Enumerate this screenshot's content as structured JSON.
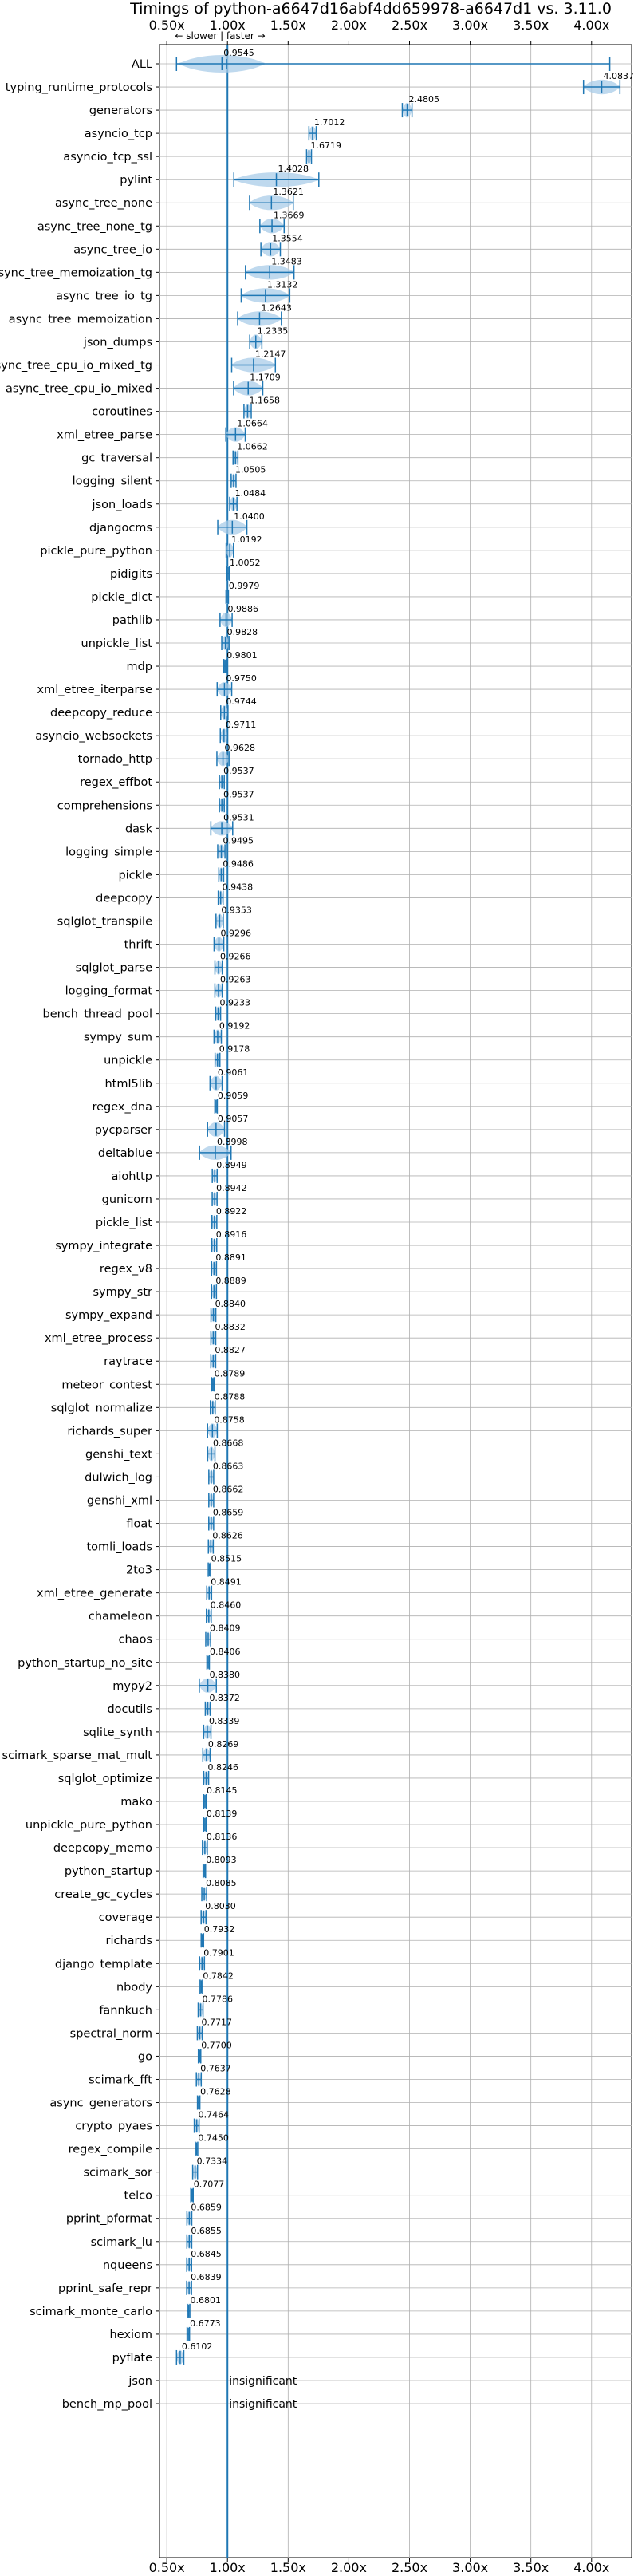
{
  "chart_data": {
    "type": "violin",
    "title": "Timings of python-a6647d16abf4dd659978-a6647d1 vs. 3.11.0",
    "direction_label": "← slower | faster →",
    "x_ticks": [
      "0.50x",
      "1.00x",
      "1.50x",
      "2.00x",
      "2.50x",
      "3.00x",
      "3.50x",
      "4.00x"
    ],
    "x_tick_values": [
      0.5,
      1.0,
      1.5,
      2.0,
      2.5,
      3.0,
      3.5,
      4.0
    ],
    "xlim": [
      0.44,
      4.33
    ],
    "reference_line": 1.0,
    "grid": true,
    "colors": {
      "violin": "#a9cce8",
      "line": "#1f77b4",
      "median": "#e8473f",
      "grid": "#b0b0b0"
    },
    "benchmarks": [
      {
        "name": "ALL",
        "label": "0.9545",
        "value": 0.9545,
        "spread": 0.35,
        "range": [
          0.58,
          4.15
        ]
      },
      {
        "name": "typing_runtime_protocols",
        "label": "4.0837",
        "value": 4.0837,
        "spread": 0.15
      },
      {
        "name": "generators",
        "label": "2.4805",
        "value": 2.4805,
        "spread": 0.04
      },
      {
        "name": "asyncio_tcp",
        "label": "1.7012",
        "value": 1.7012,
        "spread": 0.03
      },
      {
        "name": "asyncio_tcp_ssl",
        "label": "1.6719",
        "value": 1.6719,
        "spread": 0.02
      },
      {
        "name": "pylint",
        "label": "1.4028",
        "value": 1.4028,
        "spread": 0.35
      },
      {
        "name": "async_tree_none",
        "label": "1.3621",
        "value": 1.3621,
        "spread": 0.18
      },
      {
        "name": "async_tree_none_tg",
        "label": "1.3669",
        "value": 1.3669,
        "spread": 0.1
      },
      {
        "name": "async_tree_io",
        "label": "1.3554",
        "value": 1.3554,
        "spread": 0.08
      },
      {
        "name": "async_tree_memoization_tg",
        "label": "1.3483",
        "value": 1.3483,
        "spread": 0.2
      },
      {
        "name": "async_tree_io_tg",
        "label": "1.3132",
        "value": 1.3132,
        "spread": 0.2
      },
      {
        "name": "async_tree_memoization",
        "label": "1.2643",
        "value": 1.2643,
        "spread": 0.18
      },
      {
        "name": "json_dumps",
        "label": "1.2335",
        "value": 1.2335,
        "spread": 0.05
      },
      {
        "name": "async_tree_cpu_io_mixed_tg",
        "label": "1.2147",
        "value": 1.2147,
        "spread": 0.18
      },
      {
        "name": "async_tree_cpu_io_mixed",
        "label": "1.1709",
        "value": 1.1709,
        "spread": 0.12
      },
      {
        "name": "coroutines",
        "label": "1.1658",
        "value": 1.1658,
        "spread": 0.03
      },
      {
        "name": "xml_etree_parse",
        "label": "1.0664",
        "value": 1.0664,
        "spread": 0.08
      },
      {
        "name": "gc_traversal",
        "label": "1.0662",
        "value": 1.0662,
        "spread": 0.02
      },
      {
        "name": "logging_silent",
        "label": "1.0505",
        "value": 1.0505,
        "spread": 0.02
      },
      {
        "name": "json_loads",
        "label": "1.0484",
        "value": 1.0484,
        "spread": 0.03
      },
      {
        "name": "djangocms",
        "label": "1.0400",
        "value": 1.04,
        "spread": 0.12
      },
      {
        "name": "pickle_pure_python",
        "label": "1.0192",
        "value": 1.0192,
        "spread": 0.03
      },
      {
        "name": "pidigits",
        "label": "1.0052",
        "value": 1.0052,
        "spread": 0.01
      },
      {
        "name": "pickle_dict",
        "label": "0.9979",
        "value": 0.9979,
        "spread": 0.01
      },
      {
        "name": "pathlib",
        "label": "0.9886",
        "value": 0.9886,
        "spread": 0.05
      },
      {
        "name": "unpickle_list",
        "label": "0.9828",
        "value": 0.9828,
        "spread": 0.03
      },
      {
        "name": "mdp",
        "label": "0.9801",
        "value": 0.9801,
        "spread": 0.01
      },
      {
        "name": "xml_etree_iterparse",
        "label": "0.9750",
        "value": 0.975,
        "spread": 0.06
      },
      {
        "name": "deepcopy_reduce",
        "label": "0.9744",
        "value": 0.9744,
        "spread": 0.03
      },
      {
        "name": "asyncio_websockets",
        "label": "0.9711",
        "value": 0.9711,
        "spread": 0.03
      },
      {
        "name": "tornado_http",
        "label": "0.9628",
        "value": 0.9628,
        "spread": 0.05
      },
      {
        "name": "regex_effbot",
        "label": "0.9537",
        "value": 0.9537,
        "spread": 0.02
      },
      {
        "name": "comprehensions",
        "label": "0.9537",
        "value": 0.9537,
        "spread": 0.02
      },
      {
        "name": "dask",
        "label": "0.9531",
        "value": 0.9531,
        "spread": 0.09
      },
      {
        "name": "logging_simple",
        "label": "0.9495",
        "value": 0.9495,
        "spread": 0.03
      },
      {
        "name": "pickle",
        "label": "0.9486",
        "value": 0.9486,
        "spread": 0.02
      },
      {
        "name": "deepcopy",
        "label": "0.9438",
        "value": 0.9438,
        "spread": 0.02
      },
      {
        "name": "sqlglot_transpile",
        "label": "0.9353",
        "value": 0.9353,
        "spread": 0.03
      },
      {
        "name": "thrift",
        "label": "0.9296",
        "value": 0.9296,
        "spread": 0.04
      },
      {
        "name": "sqlglot_parse",
        "label": "0.9266",
        "value": 0.9266,
        "spread": 0.03
      },
      {
        "name": "logging_format",
        "label": "0.9263",
        "value": 0.9263,
        "spread": 0.03
      },
      {
        "name": "bench_thread_pool",
        "label": "0.9233",
        "value": 0.9233,
        "spread": 0.02
      },
      {
        "name": "sympy_sum",
        "label": "0.9192",
        "value": 0.9192,
        "spread": 0.03
      },
      {
        "name": "unpickle",
        "label": "0.9178",
        "value": 0.9178,
        "spread": 0.02
      },
      {
        "name": "html5lib",
        "label": "0.9061",
        "value": 0.9061,
        "spread": 0.05
      },
      {
        "name": "regex_dna",
        "label": "0.9059",
        "value": 0.9059,
        "spread": 0.01
      },
      {
        "name": "pycparser",
        "label": "0.9057",
        "value": 0.9057,
        "spread": 0.07
      },
      {
        "name": "deltablue",
        "label": "0.8998",
        "value": 0.8998,
        "spread": 0.13
      },
      {
        "name": "aiohttp",
        "label": "0.8949",
        "value": 0.8949,
        "spread": 0.02
      },
      {
        "name": "gunicorn",
        "label": "0.8942",
        "value": 0.8942,
        "spread": 0.02
      },
      {
        "name": "pickle_list",
        "label": "0.8922",
        "value": 0.8922,
        "spread": 0.02
      },
      {
        "name": "sympy_integrate",
        "label": "0.8916",
        "value": 0.8916,
        "spread": 0.02
      },
      {
        "name": "regex_v8",
        "label": "0.8891",
        "value": 0.8891,
        "spread": 0.02
      },
      {
        "name": "sympy_str",
        "label": "0.8889",
        "value": 0.8889,
        "spread": 0.02
      },
      {
        "name": "sympy_expand",
        "label": "0.8840",
        "value": 0.884,
        "spread": 0.02
      },
      {
        "name": "xml_etree_process",
        "label": "0.8832",
        "value": 0.8832,
        "spread": 0.02
      },
      {
        "name": "raytrace",
        "label": "0.8827",
        "value": 0.8827,
        "spread": 0.02
      },
      {
        "name": "meteor_contest",
        "label": "0.8789",
        "value": 0.8789,
        "spread": 0.01
      },
      {
        "name": "sqlglot_normalize",
        "label": "0.8788",
        "value": 0.8788,
        "spread": 0.02
      },
      {
        "name": "richards_super",
        "label": "0.8758",
        "value": 0.8758,
        "spread": 0.04
      },
      {
        "name": "genshi_text",
        "label": "0.8668",
        "value": 0.8668,
        "spread": 0.03
      },
      {
        "name": "dulwich_log",
        "label": "0.8663",
        "value": 0.8663,
        "spread": 0.02
      },
      {
        "name": "genshi_xml",
        "label": "0.8662",
        "value": 0.8662,
        "spread": 0.02
      },
      {
        "name": "float",
        "label": "0.8659",
        "value": 0.8659,
        "spread": 0.02
      },
      {
        "name": "tomli_loads",
        "label": "0.8626",
        "value": 0.8626,
        "spread": 0.02
      },
      {
        "name": "2to3",
        "label": "0.8515",
        "value": 0.8515,
        "spread": 0.01
      },
      {
        "name": "xml_etree_generate",
        "label": "0.8491",
        "value": 0.8491,
        "spread": 0.02
      },
      {
        "name": "chameleon",
        "label": "0.8460",
        "value": 0.846,
        "spread": 0.02
      },
      {
        "name": "chaos",
        "label": "0.8409",
        "value": 0.8409,
        "spread": 0.02
      },
      {
        "name": "python_startup_no_site",
        "label": "0.8406",
        "value": 0.8406,
        "spread": 0.01
      },
      {
        "name": "mypy2",
        "label": "0.8380",
        "value": 0.838,
        "spread": 0.07
      },
      {
        "name": "docutils",
        "label": "0.8372",
        "value": 0.8372,
        "spread": 0.02
      },
      {
        "name": "sqlite_synth",
        "label": "0.8339",
        "value": 0.8339,
        "spread": 0.03
      },
      {
        "name": "scimark_sparse_mat_mult",
        "label": "0.8269",
        "value": 0.8269,
        "spread": 0.03
      },
      {
        "name": "sqlglot_optimize",
        "label": "0.8246",
        "value": 0.8246,
        "spread": 0.02
      },
      {
        "name": "mako",
        "label": "0.8145",
        "value": 0.8145,
        "spread": 0.01
      },
      {
        "name": "unpickle_pure_python",
        "label": "0.8139",
        "value": 0.8139,
        "spread": 0.01
      },
      {
        "name": "deepcopy_memo",
        "label": "0.8136",
        "value": 0.8136,
        "spread": 0.02
      },
      {
        "name": "python_startup",
        "label": "0.8093",
        "value": 0.8093,
        "spread": 0.01
      },
      {
        "name": "create_gc_cycles",
        "label": "0.8085",
        "value": 0.8085,
        "spread": 0.02
      },
      {
        "name": "coverage",
        "label": "0.8030",
        "value": 0.803,
        "spread": 0.02
      },
      {
        "name": "richards",
        "label": "0.7932",
        "value": 0.7932,
        "spread": 0.01
      },
      {
        "name": "django_template",
        "label": "0.7901",
        "value": 0.7901,
        "spread": 0.02
      },
      {
        "name": "nbody",
        "label": "0.7842",
        "value": 0.7842,
        "spread": 0.01
      },
      {
        "name": "fannkuch",
        "label": "0.7786",
        "value": 0.7786,
        "spread": 0.02
      },
      {
        "name": "spectral_norm",
        "label": "0.7717",
        "value": 0.7717,
        "spread": 0.02
      },
      {
        "name": "go",
        "label": "0.7700",
        "value": 0.77,
        "spread": 0.01
      },
      {
        "name": "scimark_fft",
        "label": "0.7637",
        "value": 0.7637,
        "spread": 0.02
      },
      {
        "name": "async_generators",
        "label": "0.7628",
        "value": 0.7628,
        "spread": 0.01
      },
      {
        "name": "crypto_pyaes",
        "label": "0.7464",
        "value": 0.7464,
        "spread": 0.02
      },
      {
        "name": "regex_compile",
        "label": "0.7450",
        "value": 0.745,
        "spread": 0.01
      },
      {
        "name": "scimark_sor",
        "label": "0.7334",
        "value": 0.7334,
        "spread": 0.02
      },
      {
        "name": "telco",
        "label": "0.7077",
        "value": 0.7077,
        "spread": 0.01
      },
      {
        "name": "pprint_pformat",
        "label": "0.6859",
        "value": 0.6859,
        "spread": 0.02
      },
      {
        "name": "scimark_lu",
        "label": "0.6855",
        "value": 0.6855,
        "spread": 0.02
      },
      {
        "name": "nqueens",
        "label": "0.6845",
        "value": 0.6845,
        "spread": 0.02
      },
      {
        "name": "pprint_safe_repr",
        "label": "0.6839",
        "value": 0.6839,
        "spread": 0.02
      },
      {
        "name": "scimark_monte_carlo",
        "label": "0.6801",
        "value": 0.6801,
        "spread": 0.01
      },
      {
        "name": "hexiom",
        "label": "0.6773",
        "value": 0.6773,
        "spread": 0.01
      },
      {
        "name": "pyflate",
        "label": "0.6102",
        "value": 0.6102,
        "spread": 0.03
      },
      {
        "name": "json",
        "label": "insignificant",
        "value": null
      },
      {
        "name": "bench_mp_pool",
        "label": "insignificant",
        "value": null
      }
    ]
  }
}
